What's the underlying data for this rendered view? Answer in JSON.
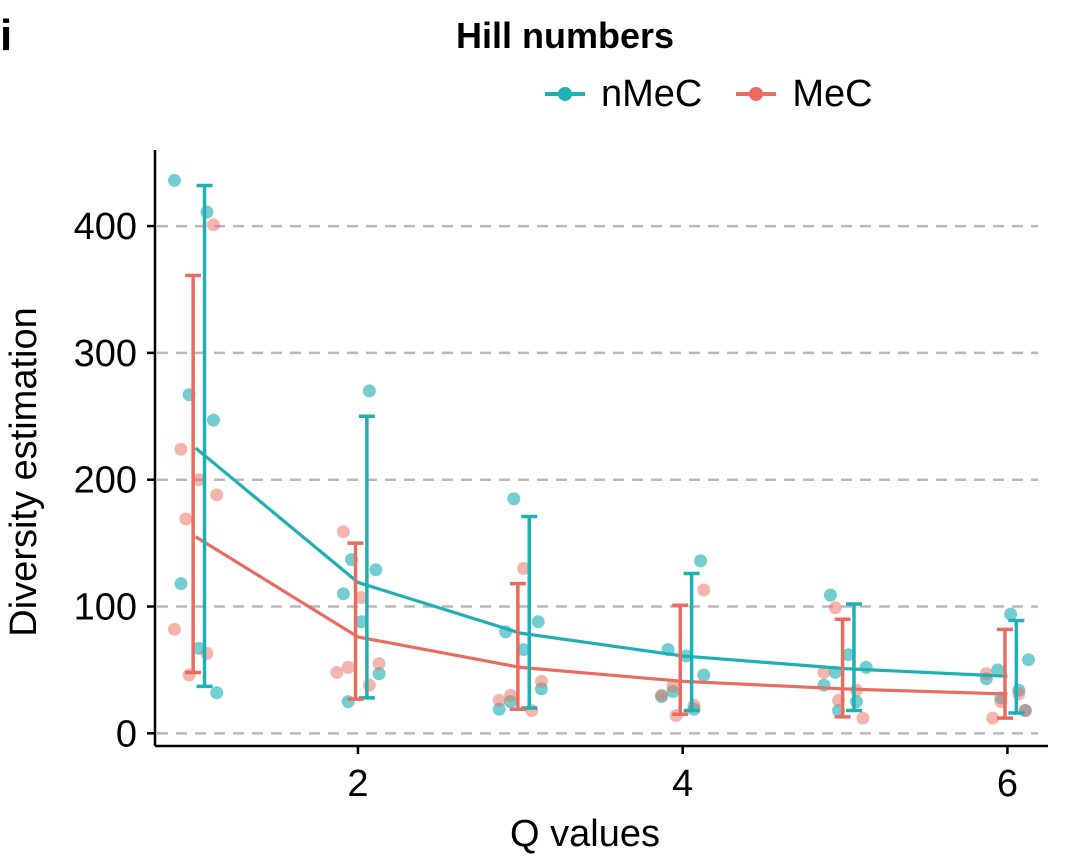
{
  "panel_label": "i",
  "chart_data": {
    "type": "line",
    "title": "Hill numbers",
    "xlabel": "Q values",
    "ylabel": "Diversity estimation",
    "xlim": [
      0.75,
      6.25
    ],
    "ylim": [
      -10,
      460
    ],
    "xticks": [
      2,
      4,
      6
    ],
    "yticks": [
      0,
      100,
      200,
      300,
      400
    ],
    "grid": "horizontal dashed",
    "legend_position": "top-right",
    "x": [
      1,
      2,
      3,
      4,
      5,
      6
    ],
    "series": [
      {
        "name": "nMeC",
        "color": "#1fb0b4",
        "values": [
          225,
          119,
          79,
          61,
          51,
          45
        ],
        "error_low": [
          37,
          28,
          20,
          18,
          18,
          16
        ],
        "error_high": [
          432,
          250,
          171,
          126,
          102,
          89
        ],
        "points": [
          [
            436,
            411,
            267,
            247,
            118,
            67,
            32
          ],
          [
            270,
            137,
            129,
            110,
            88,
            47,
            25
          ],
          [
            185,
            88,
            80,
            66,
            35,
            25,
            19
          ],
          [
            136,
            66,
            61,
            46,
            33,
            29,
            19
          ],
          [
            109,
            62,
            52,
            48,
            38,
            25,
            18
          ],
          [
            94,
            58,
            50,
            43,
            34,
            28,
            18
          ]
        ]
      },
      {
        "name": "MeC",
        "color": "#ea6b60",
        "values": [
          155,
          76,
          52,
          41,
          35,
          31
        ],
        "error_low": [
          48,
          27,
          19,
          15,
          13,
          12
        ],
        "error_high": [
          361,
          150,
          118,
          101,
          90,
          82
        ],
        "points": [
          [
            401,
            224,
            200,
            188,
            169,
            82,
            63,
            46
          ],
          [
            159,
            107,
            55,
            52,
            48,
            38
          ],
          [
            130,
            41,
            30,
            26,
            18
          ],
          [
            113,
            37,
            30,
            22,
            14
          ],
          [
            99,
            48,
            34,
            26,
            12
          ],
          [
            47,
            31,
            25,
            18,
            12
          ]
        ]
      }
    ]
  }
}
